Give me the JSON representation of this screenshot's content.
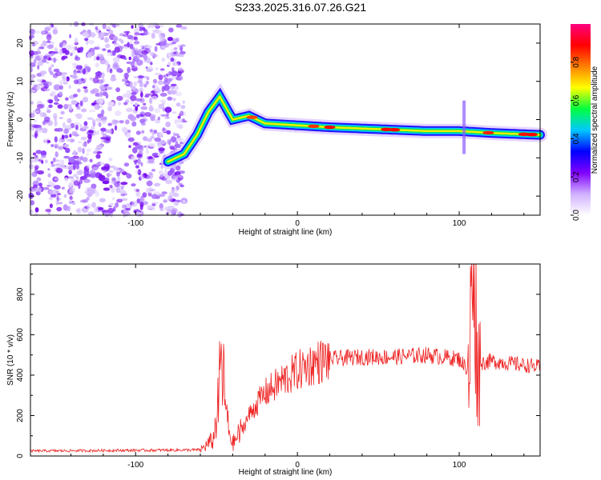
{
  "title": "S233.2025.316.07.26.G21",
  "chart_data": [
    {
      "type": "heatmap",
      "xlabel": "Height of straight line (km)",
      "ylabel": "Frequency (Hz)",
      "xlim": [
        -165,
        150
      ],
      "ylim": [
        -25,
        25
      ],
      "xticks": [
        -100,
        0,
        100
      ],
      "yticks": [
        -20,
        -10,
        0,
        10,
        20
      ],
      "grid": false,
      "colorbar": {
        "label": "Normalized spectral amplitude",
        "range": [
          0.0,
          1.0
        ],
        "ticks": [
          0.0,
          0.2,
          0.4,
          0.6,
          0.8
        ],
        "tick_labels": [
          "0.0",
          "0.2",
          "0.4",
          "0.6",
          "0.8"
        ],
        "colormap": [
          "#ffffff",
          "#d0b0ff",
          "#8000ff",
          "#0000ff",
          "#00c8ff",
          "#00ff40",
          "#ffff00",
          "#ff8000",
          "#ff0000",
          "#ff0080"
        ]
      },
      "ridge": {
        "x": [
          -80,
          -70,
          -62,
          -55,
          -48,
          -40,
          -30,
          -20,
          0,
          20,
          50,
          80,
          100,
          120,
          150
        ],
        "y": [
          -11,
          -9,
          -4,
          2,
          6,
          0,
          1,
          -1,
          -1.5,
          -2,
          -2.5,
          -3,
          -3,
          -3.5,
          -4
        ]
      }
    },
    {
      "type": "line",
      "xlabel": "Height of straight line (km)",
      "ylabel": "SNR (10 * v/v)",
      "xlim": [
        -165,
        150
      ],
      "ylim": [
        0,
        950
      ],
      "xticks": [
        -100,
        0,
        100
      ],
      "yticks": [
        0,
        200,
        400,
        600,
        800
      ],
      "grid": false,
      "series": [
        {
          "name": "SNR",
          "color": "#ee2222",
          "envelope": {
            "x": [
              -165,
              -60,
              -52,
              -49,
              -47,
              -45,
              -43,
              -40,
              -35,
              -30,
              -25,
              -20,
              -10,
              0,
              10,
              20,
              40,
              60,
              80,
              100,
              106,
              108,
              109,
              110,
              111,
              113,
              120,
              140,
              150
            ],
            "y": [
              25,
              30,
              80,
              250,
              480,
              300,
              150,
              60,
              120,
              200,
              260,
              310,
              370,
              420,
              460,
              480,
              490,
              490,
              500,
              480,
              420,
              880,
              920,
              860,
              450,
              460,
              470,
              450,
              440
            ]
          }
        }
      ]
    }
  ]
}
